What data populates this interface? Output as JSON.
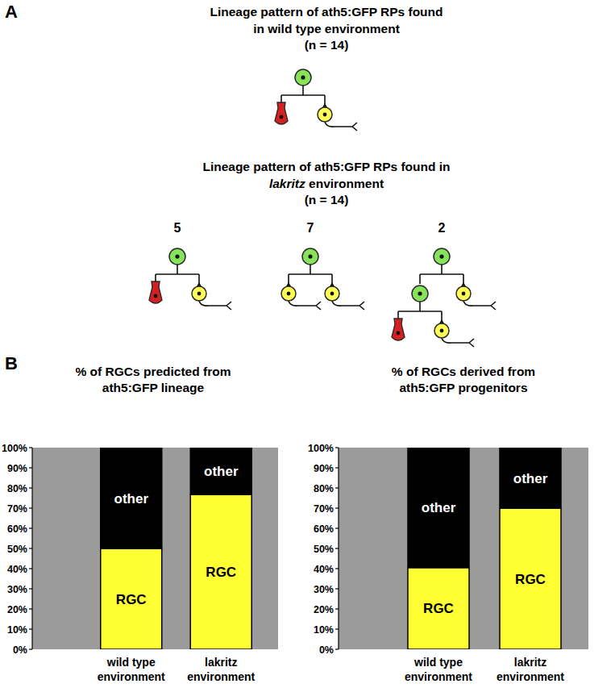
{
  "panel_labels": [
    "A",
    "B"
  ],
  "panel_a": {
    "groups": [
      {
        "title_lines": [
          [
            {
              "text": "Lineage pattern of ath5:GFP RPs found",
              "italic": false
            }
          ],
          [
            {
              "text": "in wild type environment",
              "italic": false
            }
          ]
        ],
        "n_label": "(n = 14)",
        "patterns": [
          {
            "tree": {
              "cell": "progenitor",
              "children": [
                {
                  "cell": "other"
                },
                {
                  "cell": "rgc"
                }
              ]
            }
          }
        ]
      },
      {
        "title_lines": [
          [
            {
              "text": "Lineage pattern of ath5:GFP RPs found in",
              "italic": false
            }
          ],
          [
            {
              "text": "lakritz",
              "italic": true
            },
            {
              "text": " environment",
              "italic": false
            }
          ]
        ],
        "n_label": "(n = 14)",
        "patterns": [
          {
            "count": 5,
            "tree": {
              "cell": "progenitor",
              "children": [
                {
                  "cell": "other"
                },
                {
                  "cell": "rgc"
                }
              ]
            }
          },
          {
            "count": 7,
            "tree": {
              "cell": "progenitor",
              "children": [
                {
                  "cell": "rgc"
                },
                {
                  "cell": "rgc"
                }
              ]
            }
          },
          {
            "count": 2,
            "tree": {
              "cell": "progenitor",
              "children": [
                {
                  "cell": "progenitor",
                  "children": [
                    {
                      "cell": "other"
                    },
                    {
                      "cell": "rgc"
                    }
                  ]
                },
                {
                  "cell": "rgc"
                }
              ]
            }
          }
        ]
      }
    ]
  },
  "chart_data": [
    {
      "type": "bar",
      "stacked": true,
      "title": "% of RGCs predicted from ath5:GFP lineage",
      "categories": [
        "wild type environment",
        "lakritz environment"
      ],
      "series": [
        {
          "name": "RGC",
          "color": "#ffff33",
          "values": [
            50,
            76.7
          ]
        },
        {
          "name": "other",
          "color": "#000000",
          "values": [
            50,
            23.3
          ]
        }
      ],
      "ylim": [
        0,
        100
      ],
      "yticks": [
        {
          "value": 0,
          "label": "0%"
        },
        {
          "value": 10,
          "label": "10%"
        },
        {
          "value": 20,
          "label": "20%"
        },
        {
          "value": 30,
          "label": "30%"
        },
        {
          "value": 40,
          "label": "40%"
        },
        {
          "value": 50,
          "label": "50%"
        },
        {
          "value": 60,
          "label": "60%"
        },
        {
          "value": 70,
          "label": "70%"
        },
        {
          "value": 80,
          "label": "80%"
        },
        {
          "value": 90,
          "label": "90%"
        },
        {
          "value": 100,
          "label": "100%"
        }
      ],
      "grid": false
    },
    {
      "type": "bar",
      "stacked": true,
      "title": "% of RGCs derived from ath5:GFP progenitors",
      "categories": [
        "wild type environment",
        "lakritz environment"
      ],
      "series": [
        {
          "name": "RGC",
          "color": "#ffff33",
          "values": [
            40.5,
            70
          ]
        },
        {
          "name": "other",
          "color": "#000000",
          "values": [
            59.5,
            30
          ]
        }
      ],
      "ylim": [
        0,
        100
      ],
      "yticks": [
        {
          "value": 0,
          "label": "0%"
        },
        {
          "value": 10,
          "label": "10%"
        },
        {
          "value": 20,
          "label": "20%"
        },
        {
          "value": 30,
          "label": "30%"
        },
        {
          "value": 40,
          "label": "40%"
        },
        {
          "value": 50,
          "label": "50%"
        },
        {
          "value": 60,
          "label": "60%"
        },
        {
          "value": 70,
          "label": "70%"
        },
        {
          "value": 80,
          "label": "80%"
        },
        {
          "value": 90,
          "label": "90%"
        },
        {
          "value": 100,
          "label": "100%"
        }
      ],
      "grid": false
    }
  ]
}
